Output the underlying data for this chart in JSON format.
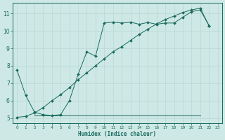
{
  "xlabel": "Humidex (Indice chaleur)",
  "bg_color": "#cde8e5",
  "line_color": "#1a6b5e",
  "xlim": [
    -0.5,
    23.5
  ],
  "ylim": [
    4.7,
    11.6
  ],
  "xticks": [
    0,
    1,
    2,
    3,
    4,
    5,
    6,
    7,
    8,
    9,
    10,
    11,
    12,
    13,
    14,
    15,
    16,
    17,
    18,
    19,
    20,
    21,
    22,
    23
  ],
  "yticks": [
    5,
    6,
    7,
    8,
    9,
    10,
    11
  ],
  "curve1_x": [
    0,
    1,
    2,
    3,
    4,
    5,
    6,
    7,
    8,
    9,
    10,
    11,
    12,
    13,
    14,
    15,
    16,
    17,
    18,
    19,
    20,
    21,
    22
  ],
  "curve1_y": [
    7.75,
    6.3,
    5.35,
    5.2,
    5.15,
    5.2,
    6.0,
    7.5,
    8.8,
    8.55,
    10.45,
    10.5,
    10.45,
    10.5,
    10.38,
    10.48,
    10.38,
    10.45,
    10.45,
    10.78,
    11.1,
    11.2,
    10.3
  ],
  "curve2_x": [
    2,
    3,
    4,
    5,
    20,
    21
  ],
  "curve2_y": [
    5.15,
    5.15,
    5.15,
    5.15,
    5.15,
    5.15
  ],
  "curve3_x": [
    0,
    1,
    2,
    3,
    4,
    5,
    6,
    7,
    8,
    9,
    10,
    11,
    12,
    13,
    14,
    15,
    16,
    17,
    18,
    19,
    20,
    21,
    22
  ],
  "curve3_y": [
    5.05,
    5.1,
    5.3,
    5.6,
    6.0,
    6.35,
    6.75,
    7.2,
    7.6,
    8.0,
    8.4,
    8.8,
    9.1,
    9.45,
    9.8,
    10.1,
    10.4,
    10.65,
    10.85,
    11.05,
    11.2,
    11.3,
    10.3
  ],
  "grid_color": "#b8d8d4",
  "grid_minor_color": "#cddedd",
  "marker": "D",
  "markersize": 2.0,
  "lw": 0.7
}
